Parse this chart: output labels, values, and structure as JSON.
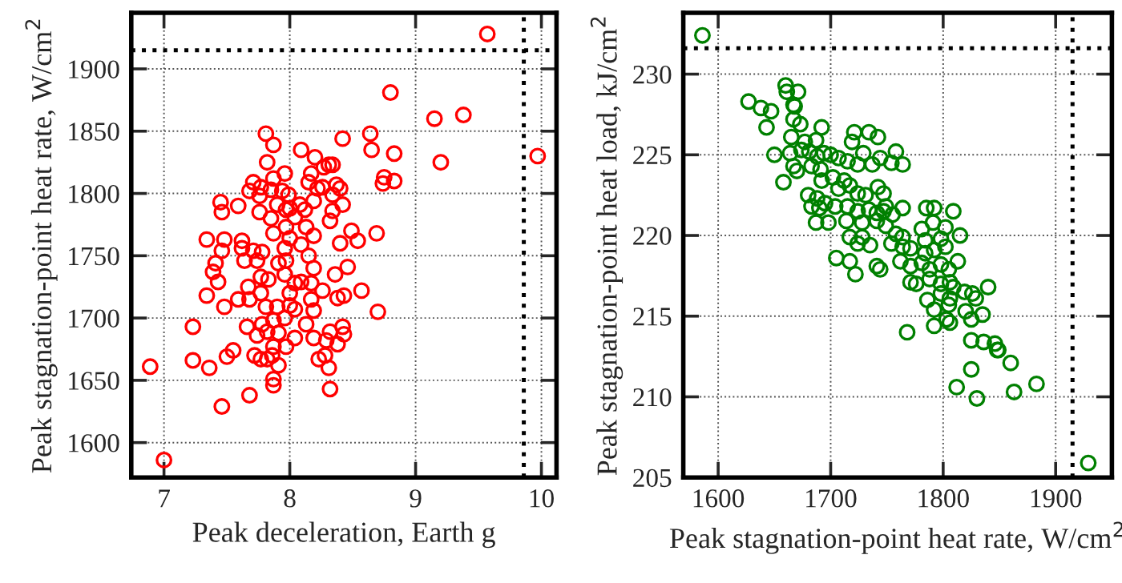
{
  "chart_data": [
    {
      "type": "scatter",
      "xlabel": "Peak deceleration, Earth g",
      "ylabel": "Peak stagnation-point heat rate, W/cm$^{2}$",
      "xlim": [
        6.74,
        10.12
      ],
      "ylim": [
        1572,
        1945
      ],
      "xticks": [
        7,
        8,
        9,
        10
      ],
      "yticks": [
        1600,
        1650,
        1700,
        1750,
        1800,
        1850,
        1900
      ],
      "grid": true,
      "marker": "circle",
      "ref_lines": [
        {
          "axis": "y",
          "value": 1915,
          "color": "#000000",
          "line_style": "dotted"
        },
        {
          "axis": "x",
          "value": 9.86,
          "color": "#000000",
          "line_style": "dotted"
        }
      ],
      "series": [
        {
          "color": "#ff0000",
          "x": [
            9.57,
            9.97,
            8.8,
            9.15,
            9.38,
            9.2,
            8.64,
            8.65,
            8.83,
            8.75,
            8.74,
            8.83,
            7.81,
            7.87,
            7.82,
            8.09,
            8.42,
            8.2,
            8.31,
            8.34,
            8.27,
            7.96,
            7.87,
            7.71,
            8.17,
            8.15,
            7.68,
            7.77,
            7.76,
            7.85,
            7.94,
            7.99,
            8.22,
            8.26,
            8.37,
            8.4,
            8.34,
            7.45,
            7.46,
            7.59,
            7.76,
            7.9,
            8.0,
            7.97,
            8.08,
            8.12,
            8.19,
            8.42,
            8.34,
            7.85,
            8.04,
            8.32,
            7.97,
            8.13,
            8.49,
            8.69,
            7.34,
            7.48,
            7.62,
            7.87,
            8.0,
            8.19,
            8.4,
            8.54,
            7.46,
            7.62,
            7.64,
            7.71,
            7.78,
            7.96,
            8.09,
            7.74,
            7.91,
            7.97,
            8.15,
            8.19,
            7.41,
            7.39,
            7.43,
            7.77,
            7.83,
            7.96,
            8.04,
            8.09,
            8.17,
            8.36,
            8.46,
            7.67,
            7.77,
            8.0,
            8.17,
            8.26,
            8.38,
            8.43,
            8.57,
            7.34,
            7.59,
            7.68,
            7.48,
            7.81,
            7.9,
            8.0,
            8.04,
            8.19,
            8.7,
            7.23,
            7.66,
            7.78,
            7.87,
            7.96,
            8.13,
            7.74,
            7.82,
            7.91,
            8.04,
            8.19,
            8.32,
            8.42,
            8.43,
            8.29,
            8.38,
            7.55,
            7.5,
            7.23,
            7.72,
            7.77,
            7.82,
            7.87,
            7.86,
            7.91,
            7.97,
            8.23,
            8.28,
            7.36,
            8.31,
            6.89,
            7.87,
            7.87,
            7.68,
            8.32,
            7.46,
            7.0
          ],
          "values": [
            1928,
            1830,
            1881,
            1860,
            1863,
            1825,
            1848,
            1835,
            1832,
            1813,
            1808,
            1810,
            1848,
            1839,
            1825,
            1835,
            1844,
            1829,
            1823,
            1823,
            1821,
            1816,
            1812,
            1809,
            1816,
            1809,
            1802,
            1805,
            1798,
            1803,
            1802,
            1799,
            1804,
            1805,
            1807,
            1804,
            1799,
            1793,
            1785,
            1790,
            1785,
            1791,
            1788,
            1787,
            1791,
            1787,
            1794,
            1791,
            1786,
            1780,
            1781,
            1778,
            1773,
            1773,
            1770,
            1768,
            1763,
            1763,
            1762,
            1768,
            1764,
            1766,
            1760,
            1762,
            1754,
            1756,
            1746,
            1754,
            1753,
            1756,
            1759,
            1746,
            1744,
            1746,
            1750,
            1740,
            1744,
            1737,
            1729,
            1733,
            1731,
            1735,
            1728,
            1729,
            1728,
            1735,
            1741,
            1725,
            1720,
            1720,
            1715,
            1722,
            1716,
            1718,
            1722,
            1718,
            1715,
            1715,
            1709,
            1709,
            1709,
            1710,
            1707,
            1706,
            1705,
            1693,
            1693,
            1695,
            1698,
            1700,
            1695,
            1686,
            1689,
            1688,
            1684,
            1684,
            1689,
            1693,
            1687,
            1682,
            1679,
            1674,
            1669,
            1666,
            1670,
            1667,
            1667,
            1677,
            1670,
            1662,
            1677,
            1667,
            1670,
            1660,
            1660,
            1661,
            1651,
            1646,
            1638,
            1643,
            1629,
            1586
          ]
        }
      ]
    },
    {
      "type": "scatter",
      "xlabel": "Peak stagnation-point heat rate, W/cm$^{2}$",
      "ylabel": "Peak stagnation-point heat load, kJ/cm$^{2}$",
      "xlim": [
        1569,
        1950
      ],
      "ylim": [
        205,
        233.8
      ],
      "xticks": [
        1600,
        1700,
        1800,
        1900
      ],
      "yticks": [
        205,
        210,
        215,
        220,
        225,
        230
      ],
      "grid": true,
      "marker": "circle",
      "ref_lines": [
        {
          "axis": "y",
          "value": 231.6,
          "color": "#000000",
          "line_style": "dotted"
        },
        {
          "axis": "x",
          "value": 1915,
          "color": "#000000",
          "line_style": "dotted"
        }
      ],
      "series": [
        {
          "color": "#008000",
          "x": [
            1586,
            1660,
            1661,
            1671,
            1627,
            1638,
            1647,
            1667,
            1668,
            1643,
            1667,
            1673,
            1692,
            1721,
            1734,
            1742,
            1719,
            1665,
            1677,
            1687,
            1650,
            1664,
            1674,
            1681,
            1688,
            1694,
            1700,
            1707,
            1715,
            1724,
            1729,
            1744,
            1754,
            1758,
            1764,
            1737,
            1667,
            1670,
            1683,
            1691,
            1692,
            1702,
            1712,
            1658,
            1707,
            1717,
            1680,
            1688,
            1695,
            1724,
            1731,
            1742,
            1747,
            1683,
            1690,
            1704,
            1715,
            1724,
            1734,
            1741,
            1747,
            1749,
            1755,
            1764,
            1785,
            1792,
            1809,
            1687,
            1698,
            1714,
            1728,
            1741,
            1749,
            1781,
            1791,
            1802,
            1815,
            1717,
            1728,
            1758,
            1764,
            1784,
            1798,
            1724,
            1735,
            1754,
            1764,
            1771,
            1784,
            1792,
            1802,
            1705,
            1717,
            1722,
            1741,
            1744,
            1762,
            1771,
            1781,
            1788,
            1798,
            1805,
            1813,
            1771,
            1776,
            1788,
            1798,
            1806,
            1798,
            1809,
            1819,
            1826,
            1829,
            1840,
            1786,
            1792,
            1805,
            1806,
            1820,
            1825,
            1835,
            1803,
            1806,
            1792,
            1768,
            1825,
            1836,
            1846,
            1848,
            1849,
            1860,
            1825,
            1812,
            1863,
            1883,
            1830,
            1929
          ],
          "values": [
            232.4,
            229.3,
            228.9,
            228.9,
            228.3,
            227.9,
            227.7,
            228.1,
            228.0,
            226.7,
            227.2,
            226.9,
            226.7,
            226.4,
            226.4,
            226.1,
            225.8,
            226.1,
            225.8,
            225.9,
            225.0,
            225.1,
            225.3,
            225.2,
            224.9,
            225.1,
            225.0,
            224.8,
            224.6,
            224.4,
            225.1,
            224.8,
            224.5,
            225.2,
            224.4,
            224.4,
            224.3,
            224.0,
            224.3,
            224.1,
            223.4,
            223.6,
            223.4,
            223.3,
            222.9,
            223.1,
            222.5,
            222.3,
            222.0,
            222.6,
            222.5,
            223.0,
            222.6,
            221.8,
            221.7,
            221.8,
            221.8,
            221.5,
            221.6,
            221.4,
            221.5,
            221.8,
            221.3,
            221.7,
            221.7,
            221.7,
            221.5,
            220.8,
            220.8,
            220.9,
            220.8,
            220.9,
            220.6,
            220.4,
            220.8,
            220.5,
            220.0,
            219.9,
            219.9,
            220.1,
            219.9,
            219.7,
            219.8,
            219.5,
            219.4,
            219.5,
            219.3,
            219.2,
            218.9,
            219.1,
            219.3,
            218.6,
            218.4,
            217.6,
            218.1,
            217.9,
            218.4,
            218.1,
            218.3,
            217.9,
            218.2,
            217.9,
            218.4,
            217.1,
            217.0,
            217.3,
            217.0,
            217.1,
            216.4,
            216.8,
            216.5,
            216.4,
            216.1,
            216.8,
            216.0,
            215.4,
            215.7,
            216.1,
            215.3,
            214.8,
            215.1,
            214.8,
            214.6,
            214.4,
            214.0,
            213.5,
            213.4,
            213.3,
            212.9,
            212.9,
            212.1,
            211.7,
            210.6,
            210.3,
            210.8,
            209.9,
            205.9
          ]
        }
      ]
    }
  ]
}
